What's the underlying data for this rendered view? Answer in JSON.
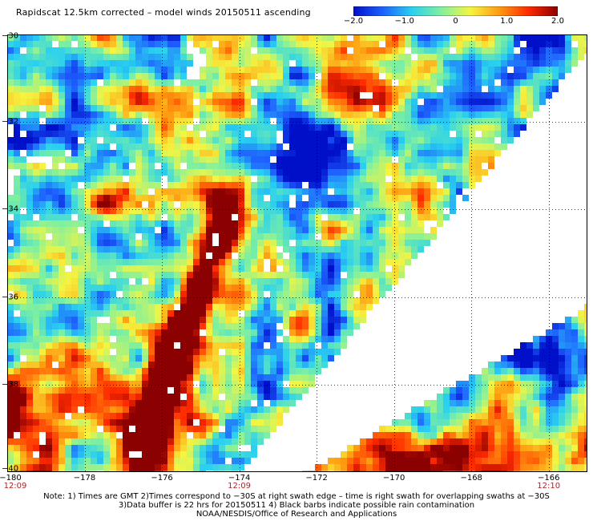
{
  "header": {
    "title": "Rapidscat 12.5km corrected – model winds 20150511 ascending"
  },
  "colorbar": {
    "ticks": [
      {
        "label": "−2.0",
        "value": -2.0
      },
      {
        "label": "−1.0",
        "value": -1.0
      },
      {
        "label": "0",
        "value": 0.0
      },
      {
        "label": "1.0",
        "value": 1.0
      },
      {
        "label": "2.0",
        "value": 2.0
      }
    ],
    "colors": [
      "#0010c8",
      "#1e60ff",
      "#29d0f0",
      "#7ff0a0",
      "#f5f540",
      "#ff9a10",
      "#ff2a00",
      "#8b0000"
    ]
  },
  "axes": {
    "lon_labels": [
      "−180",
      "−178",
      "−176",
      "−174",
      "−172",
      "−170",
      "−168",
      "−166"
    ],
    "lon_values": [
      -180,
      -178,
      -176,
      -174,
      -172,
      -170,
      -168,
      -166
    ],
    "lat_labels": [
      "−30",
      "−32",
      "−34",
      "−36",
      "−38",
      "−40"
    ],
    "lat_values": [
      -30,
      -32,
      -34,
      -36,
      -38,
      -40
    ],
    "lon_range": [
      -180,
      -165
    ],
    "lat_range": [
      -30,
      -40
    ]
  },
  "times": [
    {
      "label": "12:09",
      "lon": -180
    },
    {
      "label": "12:09",
      "lon": -174
    },
    {
      "label": "12:10",
      "lon": -166
    }
  ],
  "notes": {
    "line1": "Note: 1) Times are GMT 2)Times correspond to −30S at right swath edge – time is right swath for overlapping swaths at −30S",
    "line2": "3)Data buffer is 22 hrs for 20150511 4) Black barbs indicate possible rain contamination",
    "line3": "NOAA/NESDIS/Office of Research and Applications"
  }
}
